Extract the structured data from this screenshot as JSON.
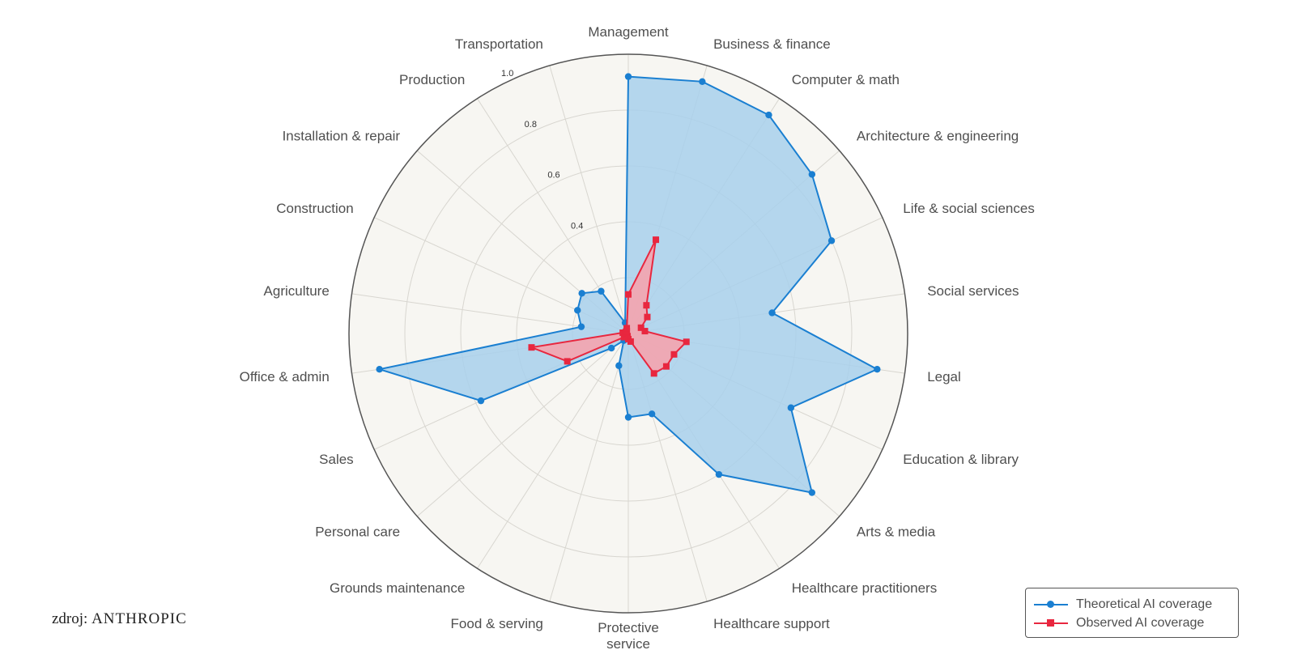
{
  "chart_data": {
    "type": "radar",
    "rlim": [
      0,
      1.0
    ],
    "ticks": [
      "0.4",
      "0.6",
      "0.8",
      "1.0"
    ],
    "tick_values": [
      0.4,
      0.6,
      0.8,
      1.0
    ],
    "grid_values": [
      0.2,
      0.4,
      0.6,
      0.8,
      1.0
    ],
    "categories": [
      [
        "Management"
      ],
      [
        "Business & finance"
      ],
      [
        "Computer & math"
      ],
      [
        "Architecture & engineering"
      ],
      [
        "Life & social sciences"
      ],
      [
        "Social services"
      ],
      [
        "Legal"
      ],
      [
        "Education & library"
      ],
      [
        "Arts & media"
      ],
      [
        "Healthcare practitioners"
      ],
      [
        "Healthcare support"
      ],
      [
        "Protective",
        "service"
      ],
      [
        "Food & serving"
      ],
      [
        "Grounds maintenance"
      ],
      [
        "Personal care"
      ],
      [
        "Sales"
      ],
      [
        "Office & admin"
      ],
      [
        "Agriculture"
      ],
      [
        "Construction"
      ],
      [
        "Installation & repair"
      ],
      [
        "Production"
      ],
      [
        "Transportation"
      ]
    ],
    "series": [
      {
        "name": "Theoretical AI coverage",
        "color": "#1a7fd1",
        "fill": "#a8d0ec",
        "marker": "circle",
        "values": [
          0.92,
          0.94,
          0.93,
          0.87,
          0.8,
          0.52,
          0.9,
          0.64,
          0.87,
          0.6,
          0.3,
          0.3,
          0.12,
          0.03,
          0.08,
          0.58,
          0.9,
          0.17,
          0.2,
          0.22,
          0.18,
          0.04
        ]
      },
      {
        "name": "Observed AI coverage",
        "color": "#e8273f",
        "fill": "#f4a4ae",
        "marker": "square",
        "values": [
          0.14,
          0.35,
          0.12,
          0.09,
          0.05,
          0.06,
          0.21,
          0.18,
          0.18,
          0.17,
          0.03,
          0.02,
          0.01,
          0.01,
          0.02,
          0.24,
          0.35,
          0.02,
          0.01,
          0.01,
          0.01,
          0.02
        ]
      }
    ]
  },
  "source": {
    "prefix": "zdroj: ",
    "brand": "ANTHROPIC"
  },
  "colors": {
    "plot_background": "#f7f6f2",
    "grid": "#d8d6d0",
    "outer_ring": "#555555"
  }
}
